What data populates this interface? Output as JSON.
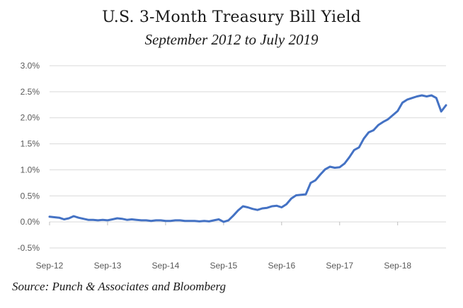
{
  "chart_data": {
    "type": "line",
    "title": "U.S. 3-Month Treasury Bill Yield",
    "subtitle": "September 2012 to July 2019",
    "source": "Source: Punch & Associates and Bloomberg",
    "xlabel": "",
    "ylabel": "",
    "x_tick_labels": [
      "Sep-12",
      "Sep-13",
      "Sep-14",
      "Sep-15",
      "Sep-16",
      "Sep-17",
      "Sep-18"
    ],
    "y_tick_labels": [
      "-0.5%",
      "0.0%",
      "0.5%",
      "1.0%",
      "1.5%",
      "2.0%",
      "2.5%",
      "3.0%"
    ],
    "ylim": [
      -0.5,
      3.0
    ],
    "xlim": [
      "2012-09",
      "2019-07"
    ],
    "grid": true,
    "line_color": "#4472c4",
    "series": [
      {
        "x": [
          "2012-09",
          "2012-10",
          "2012-11",
          "2012-12",
          "2013-01",
          "2013-02",
          "2013-03",
          "2013-04",
          "2013-05",
          "2013-06",
          "2013-07",
          "2013-08",
          "2013-09",
          "2013-10",
          "2013-11",
          "2013-12",
          "2014-01",
          "2014-02",
          "2014-03",
          "2014-04",
          "2014-05",
          "2014-06",
          "2014-07",
          "2014-08",
          "2014-09",
          "2014-10",
          "2014-11",
          "2014-12",
          "2015-01",
          "2015-02",
          "2015-03",
          "2015-04",
          "2015-05",
          "2015-06",
          "2015-07",
          "2015-08",
          "2015-09",
          "2015-10",
          "2015-11",
          "2015-12",
          "2016-01",
          "2016-02",
          "2016-03",
          "2016-04",
          "2016-05",
          "2016-06",
          "2016-07",
          "2016-08",
          "2016-09",
          "2016-10",
          "2016-11",
          "2016-12",
          "2017-01",
          "2017-02",
          "2017-03",
          "2017-04",
          "2017-05",
          "2017-06",
          "2017-07",
          "2017-08",
          "2017-09",
          "2017-10",
          "2017-11",
          "2017-12",
          "2018-01",
          "2018-02",
          "2018-03",
          "2018-04",
          "2018-05",
          "2018-06",
          "2018-07",
          "2018-08",
          "2018-09",
          "2018-10",
          "2018-11",
          "2018-12",
          "2019-01",
          "2019-02",
          "2019-03",
          "2019-04",
          "2019-05",
          "2019-06",
          "2019-07"
        ],
        "values": [
          0.1,
          0.09,
          0.08,
          0.05,
          0.07,
          0.11,
          0.08,
          0.06,
          0.04,
          0.04,
          0.03,
          0.04,
          0.03,
          0.05,
          0.07,
          0.06,
          0.04,
          0.05,
          0.04,
          0.03,
          0.03,
          0.02,
          0.03,
          0.03,
          0.02,
          0.02,
          0.03,
          0.03,
          0.02,
          0.02,
          0.02,
          0.01,
          0.02,
          0.01,
          0.03,
          0.05,
          0.0,
          0.03,
          0.12,
          0.22,
          0.3,
          0.28,
          0.25,
          0.23,
          0.26,
          0.27,
          0.3,
          0.31,
          0.28,
          0.34,
          0.45,
          0.51,
          0.52,
          0.53,
          0.75,
          0.8,
          0.91,
          1.01,
          1.06,
          1.04,
          1.05,
          1.12,
          1.24,
          1.38,
          1.43,
          1.6,
          1.72,
          1.76,
          1.86,
          1.92,
          1.97,
          2.05,
          2.13,
          2.29,
          2.35,
          2.38,
          2.41,
          2.43,
          2.41,
          2.43,
          2.38,
          2.12,
          2.24
        ]
      }
    ]
  }
}
